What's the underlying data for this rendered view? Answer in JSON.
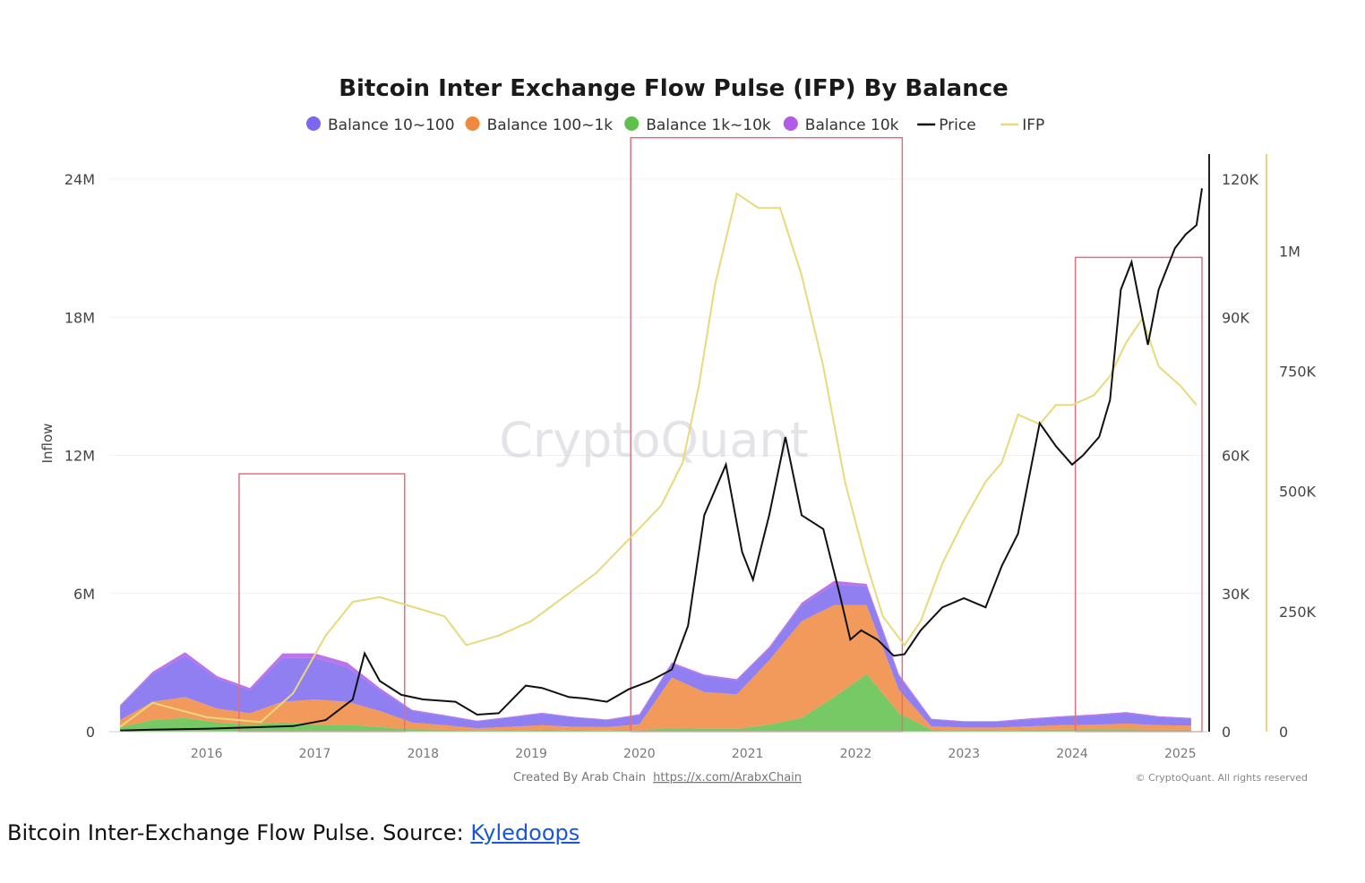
{
  "chart_data": {
    "type": "area",
    "title": "Bitcoin Inter Exchange Flow Pulse (IFP) By Balance",
    "ylabel": "Inflow",
    "xlim": [
      2015.6,
      2025.75
    ],
    "ylim": [
      0,
      24000000
    ],
    "price_ylim": [
      0,
      120000
    ],
    "ifp_ylim": [
      0,
      1150000
    ],
    "x_ticks": [
      "2016",
      "2017",
      "2018",
      "2019",
      "2020",
      "2021",
      "2022",
      "2023",
      "2024",
      "2025"
    ],
    "y_ticks": [
      "0",
      "6M",
      "12M",
      "18M",
      "24M"
    ],
    "price_ticks": [
      "0",
      "30K",
      "60K",
      "90K",
      "120K"
    ],
    "ifp_ticks": [
      "0",
      "250K",
      "500K",
      "750K",
      "1M"
    ],
    "grid": true,
    "legend": "top-center",
    "legend_items": [
      {
        "label": "Balance 10~100",
        "marker": "dot",
        "color": "#7b68ee"
      },
      {
        "label": "Balance 100~1k",
        "marker": "dot",
        "color": "#f0883e"
      },
      {
        "label": "Balance 1k~10k",
        "marker": "dot",
        "color": "#5ec04a"
      },
      {
        "label": "Balance 10k",
        "marker": "dot",
        "color": "#b25be8"
      },
      {
        "label": "Price",
        "marker": "line",
        "color": "#111111"
      },
      {
        "label": "IFP",
        "marker": "line",
        "color": "#e8d97a"
      }
    ],
    "series": [
      {
        "name": "Balance 10~100",
        "axis": "left",
        "color": "#7b68ee",
        "x": [
          2015.7,
          2016.0,
          2016.3,
          2016.6,
          2016.9,
          2017.2,
          2017.5,
          2017.8,
          2018.1,
          2018.4,
          2018.7,
          2019.0,
          2019.3,
          2019.6,
          2019.9,
          2020.2,
          2020.5,
          2020.8,
          2021.1,
          2021.4,
          2021.7,
          2022.0,
          2022.3,
          2022.6,
          2022.9,
          2023.2,
          2023.5,
          2023.8,
          2024.1,
          2024.4,
          2024.7,
          2025.0,
          2025.3,
          2025.6
        ],
        "y": [
          600000,
          1200000,
          1800000,
          1300000,
          1000000,
          1900000,
          1800000,
          1500000,
          900000,
          500000,
          400000,
          300000,
          400000,
          500000,
          400000,
          300000,
          400000,
          600000,
          700000,
          600000,
          500000,
          700000,
          900000,
          800000,
          600000,
          300000,
          250000,
          250000,
          300000,
          350000,
          400000,
          450000,
          350000,
          300000
        ]
      },
      {
        "name": "Balance 100~1k",
        "axis": "left",
        "color": "#f0883e",
        "x": [
          2015.7,
          2016.0,
          2016.3,
          2016.6,
          2016.9,
          2017.2,
          2017.5,
          2017.8,
          2018.1,
          2018.4,
          2018.7,
          2019.0,
          2019.3,
          2019.6,
          2019.9,
          2020.2,
          2020.5,
          2020.8,
          2021.1,
          2021.4,
          2021.7,
          2022.0,
          2022.3,
          2022.6,
          2022.9,
          2023.2,
          2023.5,
          2023.8,
          2024.1,
          2024.4,
          2024.7,
          2025.0,
          2025.3,
          2025.6
        ],
        "y": [
          300000,
          800000,
          900000,
          600000,
          500000,
          900000,
          1100000,
          1000000,
          700000,
          300000,
          200000,
          100000,
          150000,
          200000,
          150000,
          150000,
          250000,
          2200000,
          1600000,
          1500000,
          2800000,
          4200000,
          4000000,
          3000000,
          1000000,
          150000,
          120000,
          120000,
          150000,
          200000,
          200000,
          250000,
          200000,
          180000
        ]
      },
      {
        "name": "Balance 1k~10k",
        "axis": "left",
        "color": "#5ec04a",
        "x": [
          2015.7,
          2016.0,
          2016.3,
          2016.6,
          2016.9,
          2017.2,
          2017.5,
          2017.8,
          2018.1,
          2018.4,
          2018.7,
          2019.0,
          2019.3,
          2019.6,
          2019.9,
          2020.2,
          2020.5,
          2020.8,
          2021.1,
          2021.4,
          2021.7,
          2022.0,
          2022.3,
          2022.6,
          2022.9,
          2023.2,
          2023.5,
          2023.8,
          2024.1,
          2024.4,
          2024.7,
          2025.0,
          2025.3,
          2025.6
        ],
        "y": [
          200000,
          500000,
          600000,
          400000,
          300000,
          400000,
          300000,
          300000,
          200000,
          100000,
          80000,
          50000,
          60000,
          80000,
          60000,
          50000,
          70000,
          150000,
          120000,
          120000,
          300000,
          600000,
          1500000,
          2500000,
          800000,
          80000,
          60000,
          60000,
          80000,
          80000,
          100000,
          100000,
          80000,
          80000
        ]
      },
      {
        "name": "Balance 10k",
        "axis": "left",
        "color": "#b25be8",
        "x": [
          2015.7,
          2016.0,
          2016.3,
          2016.6,
          2016.9,
          2017.2,
          2017.5,
          2017.8,
          2018.1,
          2018.4,
          2018.7,
          2019.0,
          2019.3,
          2019.6,
          2019.9,
          2020.2,
          2020.5,
          2020.8,
          2021.1,
          2021.4,
          2021.7,
          2022.0,
          2022.3,
          2022.6,
          2022.9,
          2023.2,
          2023.5,
          2023.8,
          2024.1,
          2024.4,
          2024.7,
          2025.0,
          2025.3,
          2025.6
        ],
        "y": [
          50000,
          100000,
          150000,
          100000,
          100000,
          200000,
          200000,
          200000,
          100000,
          50000,
          40000,
          30000,
          30000,
          40000,
          30000,
          30000,
          40000,
          60000,
          60000,
          60000,
          80000,
          100000,
          150000,
          120000,
          80000,
          30000,
          30000,
          30000,
          40000,
          40000,
          50000,
          50000,
          40000,
          40000
        ]
      },
      {
        "name": "Price",
        "axis": "right",
        "color": "#111111",
        "x": [
          2015.7,
          2016.0,
          2016.5,
          2017.0,
          2017.3,
          2017.6,
          2017.85,
          2017.96,
          2018.1,
          2018.3,
          2018.5,
          2018.8,
          2019.0,
          2019.2,
          2019.45,
          2019.6,
          2019.85,
          2020.0,
          2020.2,
          2020.4,
          2020.6,
          2020.8,
          2020.95,
          2021.1,
          2021.3,
          2021.45,
          2021.55,
          2021.7,
          2021.85,
          2022.0,
          2022.2,
          2022.35,
          2022.45,
          2022.55,
          2022.7,
          2022.85,
          2022.95,
          2023.1,
          2023.3,
          2023.5,
          2023.7,
          2023.85,
          2024.0,
          2024.2,
          2024.35,
          2024.5,
          2024.6,
          2024.75,
          2024.85,
          2024.95,
          2025.05,
          2025.2,
          2025.3,
          2025.45,
          2025.55,
          2025.65,
          2025.7
        ],
        "y": [
          250,
          430,
          650,
          1000,
          1200,
          2500,
          7000,
          17000,
          11000,
          8000,
          7000,
          6500,
          3700,
          4000,
          10000,
          9500,
          7500,
          7200,
          6500,
          9200,
          11000,
          13500,
          23000,
          47000,
          58000,
          39000,
          33000,
          47000,
          64000,
          47000,
          44000,
          30000,
          20000,
          22000,
          20000,
          16500,
          16800,
          22000,
          27000,
          29000,
          27000,
          36000,
          43000,
          67000,
          62000,
          58000,
          60000,
          64000,
          72000,
          96000,
          102000,
          84000,
          96000,
          105000,
          108000,
          110000,
          118000
        ]
      },
      {
        "name": "IFP",
        "axis": "ifp",
        "color": "#e8d97a",
        "x": [
          2015.7,
          2016.0,
          2016.5,
          2017.0,
          2017.3,
          2017.6,
          2017.85,
          2018.1,
          2018.4,
          2018.7,
          2018.9,
          2019.2,
          2019.5,
          2019.8,
          2020.1,
          2020.4,
          2020.7,
          2020.9,
          2021.05,
          2021.2,
          2021.4,
          2021.6,
          2021.8,
          2022.0,
          2022.2,
          2022.4,
          2022.6,
          2022.75,
          2022.95,
          2023.1,
          2023.3,
          2023.5,
          2023.7,
          2023.85,
          2024.0,
          2024.2,
          2024.35,
          2024.5,
          2024.7,
          2024.85,
          2025.0,
          2025.15,
          2025.3,
          2025.5,
          2025.65
        ],
        "y": [
          10000,
          60000,
          30000,
          20000,
          80000,
          200000,
          270000,
          280000,
          260000,
          240000,
          180000,
          200000,
          230000,
          280000,
          330000,
          400000,
          470000,
          560000,
          720000,
          930000,
          1120000,
          1090000,
          1090000,
          950000,
          760000,
          520000,
          350000,
          240000,
          180000,
          230000,
          350000,
          440000,
          520000,
          560000,
          660000,
          640000,
          680000,
          680000,
          700000,
          740000,
          810000,
          860000,
          760000,
          720000,
          680000
        ]
      }
    ],
    "highlight_ranges": [
      {
        "x": [
          2016.8,
          2018.33
        ],
        "top": 11200000
      },
      {
        "x": [
          2020.42,
          2022.93
        ],
        "top": 25800000
      },
      {
        "x": [
          2024.53,
          2025.7
        ],
        "top": 20600000
      }
    ],
    "annotations": {
      "watermark": "CryptoQuant",
      "credit_prefix": "Created By Arab Chain",
      "credit_link": "https://x.com/ArabxChain",
      "copyright": "© CryptoQuant. All rights reserved"
    }
  },
  "caption": {
    "text": "Bitcoin Inter-Exchange Flow Pulse. Source:",
    "link_text": "Kyledoops"
  }
}
